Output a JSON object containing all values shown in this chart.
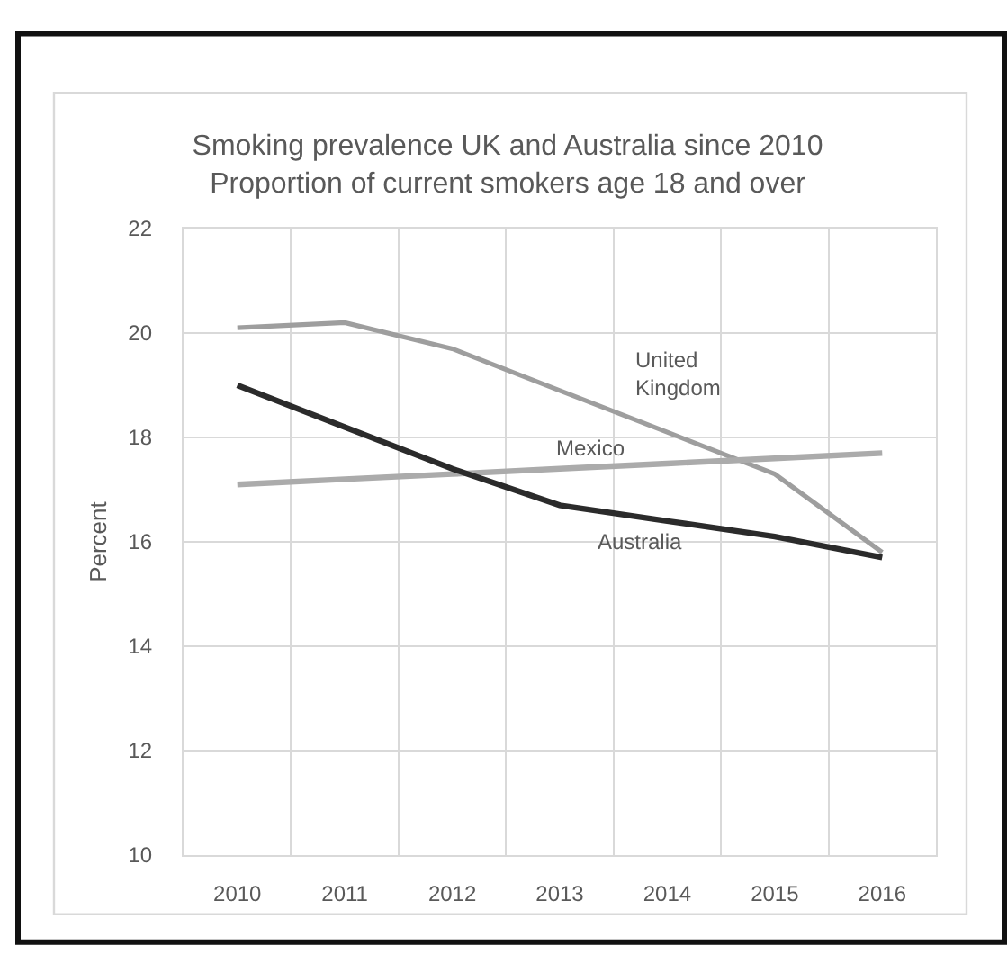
{
  "chart_data": {
    "type": "line",
    "title": "Smoking prevalence UK and Australia since 2010",
    "subtitle": "Proportion of current smokers age 18 and over",
    "ylabel": "Percent",
    "categories": [
      "2010",
      "2011",
      "2012",
      "2013",
      "2014",
      "2015",
      "2016"
    ],
    "series": [
      {
        "name": "United Kingdom",
        "color": "#9e9e9e",
        "values": [
          20.1,
          20.2,
          19.7,
          18.9,
          18.1,
          17.3,
          15.8
        ]
      },
      {
        "name": "Mexico",
        "color": "#ababab",
        "values": [
          17.1,
          17.2,
          17.3,
          17.4,
          17.5,
          17.6,
          17.7
        ]
      },
      {
        "name": "Australia",
        "color": "#2b2b2b",
        "values": [
          19.0,
          18.2,
          17.4,
          16.7,
          16.4,
          16.1,
          15.7
        ]
      }
    ],
    "ylim": [
      10,
      22
    ],
    "yticks": [
      10,
      12,
      14,
      16,
      18,
      20,
      22
    ],
    "grid": true,
    "line_style": "solid"
  }
}
